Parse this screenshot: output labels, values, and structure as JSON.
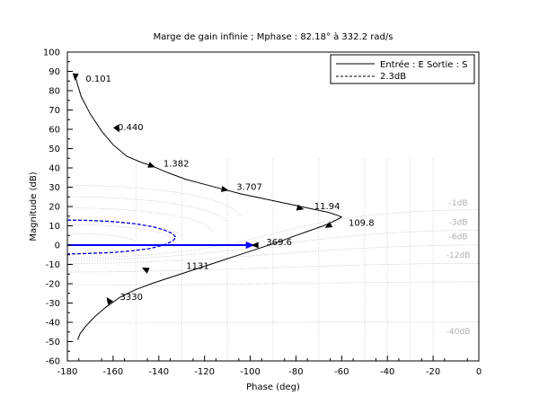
{
  "chart_data": {
    "type": "line",
    "title": "Marge de gain infinie ; Mphase : 82.18° à  332.2 rad/s",
    "xlabel": "Phase (deg)",
    "ylabel": "Magnitude (dB)",
    "xlim": [
      -180,
      0
    ],
    "ylim": [
      -60,
      100
    ],
    "xticks": [
      -180,
      -160,
      -140,
      -120,
      -100,
      -80,
      -60,
      -40,
      -20,
      0
    ],
    "yticks": [
      -60,
      -50,
      -40,
      -30,
      -20,
      -10,
      0,
      10,
      20,
      30,
      40,
      50,
      60,
      70,
      80,
      90,
      100
    ],
    "legend": "top-right",
    "series": [
      {
        "name": "Entrée : E Sortie : S",
        "color": "#000000",
        "dash": "solid",
        "x": [
          -176.5,
          -174,
          -170,
          -165,
          -160,
          -154,
          -148,
          -143,
          -136,
          -128,
          -120,
          -112,
          -104,
          -96,
          -88,
          -80,
          -72,
          -66,
          -62,
          -60,
          -64,
          -68,
          -74,
          -80,
          -88,
          -97,
          -106,
          -115,
          -124,
          -133,
          -142,
          -150,
          -157,
          -163,
          -168,
          -172,
          -174.5,
          -175.5
        ],
        "y": [
          87,
          77,
          68,
          59,
          52,
          46,
          43,
          41,
          37.5,
          34,
          31.5,
          29,
          26.5,
          24.5,
          22.5,
          20.5,
          18.5,
          17,
          15.5,
          14.5,
          12,
          10,
          7.5,
          5,
          1.5,
          -2,
          -5.5,
          -9,
          -12.5,
          -16,
          -19.5,
          -23,
          -27,
          -32,
          -37,
          -42,
          -46,
          -49
        ]
      },
      {
        "name": "2.3dB",
        "color": "#0000cc",
        "dash": "dashed",
        "x": [
          -180,
          -170,
          -160,
          -150,
          -143,
          -138,
          -134,
          -132.5,
          -134,
          -138,
          -144,
          -152,
          -160,
          -170,
          -180
        ],
        "y": [
          13,
          12.8,
          12.2,
          11,
          9.6,
          8,
          6,
          4,
          2,
          0,
          -1.8,
          -3,
          -3.8,
          -4.3,
          -4.6
        ]
      }
    ],
    "arrow_line": {
      "color": "#0000ff",
      "x": [
        -180,
        -98
      ],
      "y": [
        0,
        0
      ]
    },
    "point_labels": [
      {
        "label": "0.101",
        "x": -172,
        "y": 86
      },
      {
        "label": "0.440",
        "x": -158,
        "y": 61
      },
      {
        "label": "1.382",
        "x": -138,
        "y": 42
      },
      {
        "label": "3.707",
        "x": -106,
        "y": 30
      },
      {
        "label": "11.94",
        "x": -72,
        "y": 20
      },
      {
        "label": "109.8",
        "x": -57,
        "y": 11.5
      },
      {
        "label": "369.6",
        "x": -93,
        "y": 1.5
      },
      {
        "label": "1131",
        "x": -128,
        "y": -11
      },
      {
        "label": "3330",
        "x": -157,
        "y": -27
      }
    ],
    "markers": [
      {
        "x": -176.5,
        "y": 87,
        "angle": 95
      },
      {
        "x": -158,
        "y": 60,
        "angle": 60
      },
      {
        "x": -143,
        "y": 41,
        "angle": 20
      },
      {
        "x": -111,
        "y": 28.7,
        "angle": 12
      },
      {
        "x": -78,
        "y": 19,
        "angle": 15
      },
      {
        "x": -66,
        "y": 9.8,
        "angle": 150
      },
      {
        "x": -98,
        "y": 0,
        "angle": 180
      },
      {
        "x": -146,
        "y": -12.5,
        "angle": 205
      },
      {
        "x": -162,
        "y": -28.5,
        "angle": 235
      }
    ],
    "contour_labels": [
      {
        "label": "-1dB",
        "x": -9,
        "y": 20.5
      },
      {
        "label": "-3dB",
        "x": -9,
        "y": 10.5
      },
      {
        "label": "-6dB",
        "x": -9,
        "y": 3
      },
      {
        "label": "-12dB",
        "x": -9,
        "y": -6.5
      },
      {
        "label": "-40dB",
        "x": -9,
        "y": -46
      }
    ]
  }
}
